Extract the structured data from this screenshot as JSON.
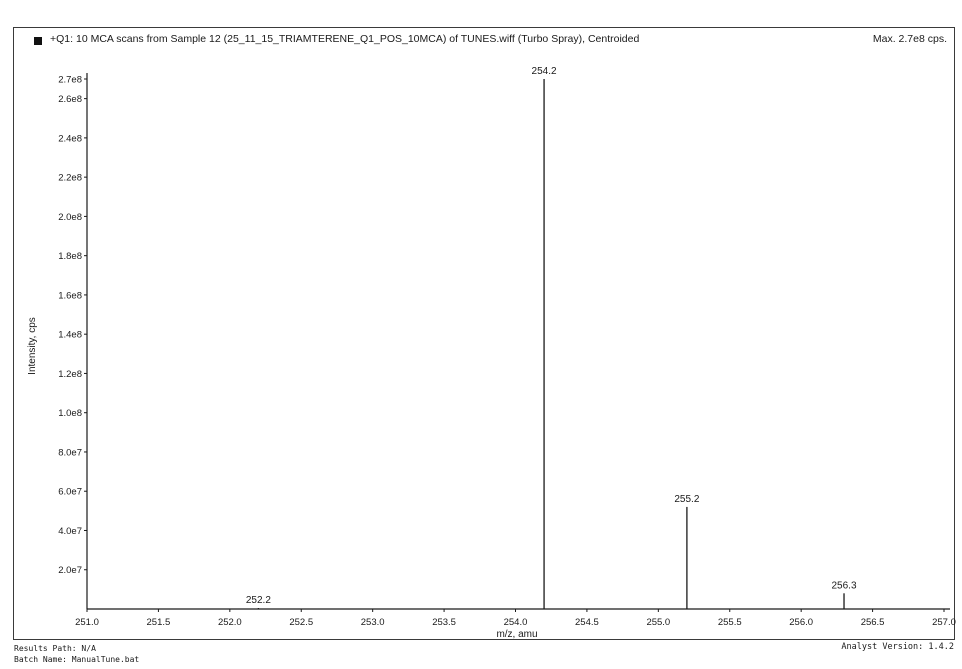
{
  "header": {
    "title": "+Q1: 10 MCA scans from Sample 12 (25_11_15_TRIAMTERENE_Q1_POS_10MCA) of TUNES.wiff (Turbo Spray), Centroided",
    "max_label": "Max. 2.7e8 cps."
  },
  "footer": {
    "results_path": "Results Path: N/A",
    "batch_name": "Batch Name: ManualTune.bat",
    "analyst_version": "Analyst Version: 1.4.2"
  },
  "colors": {
    "line": "#1a1a1a",
    "frame": "#3a3a3a",
    "background": "#ffffff"
  },
  "chart_data": {
    "type": "bar",
    "xlabel": "m/z, amu",
    "ylabel": "Intensity, cps",
    "xlim": [
      251.0,
      257.0
    ],
    "ylim": [
      0,
      270000000
    ],
    "x_ticks": [
      251.0,
      251.5,
      252.0,
      252.5,
      253.0,
      253.5,
      254.0,
      254.5,
      255.0,
      255.5,
      256.0,
      256.5,
      257.0
    ],
    "x_tick_labels": [
      "251.0",
      "251.5",
      "252.0",
      "252.5",
      "253.0",
      "253.5",
      "254.0",
      "254.5",
      "255.0",
      "255.5",
      "256.0",
      "256.5",
      "257.0"
    ],
    "y_ticks": [
      20000000,
      40000000,
      60000000,
      80000000,
      100000000,
      120000000,
      140000000,
      160000000,
      180000000,
      200000000,
      220000000,
      240000000,
      260000000,
      270000000
    ],
    "y_tick_labels": [
      "2.0e7",
      "4.0e7",
      "6.0e7",
      "8.0e7",
      "1.0e8",
      "1.2e8",
      "1.4e8",
      "1.6e8",
      "1.8e8",
      "2.0e8",
      "2.2e8",
      "2.4e8",
      "2.6e8",
      "2.7e8"
    ],
    "peaks": [
      {
        "mz": 252.2,
        "intensity": 500000,
        "label": "252.2"
      },
      {
        "mz": 254.2,
        "intensity": 270000000,
        "label": "254.2"
      },
      {
        "mz": 255.2,
        "intensity": 52000000,
        "label": "255.2"
      },
      {
        "mz": 256.3,
        "intensity": 8000000,
        "label": "256.3"
      }
    ],
    "grid": false
  }
}
